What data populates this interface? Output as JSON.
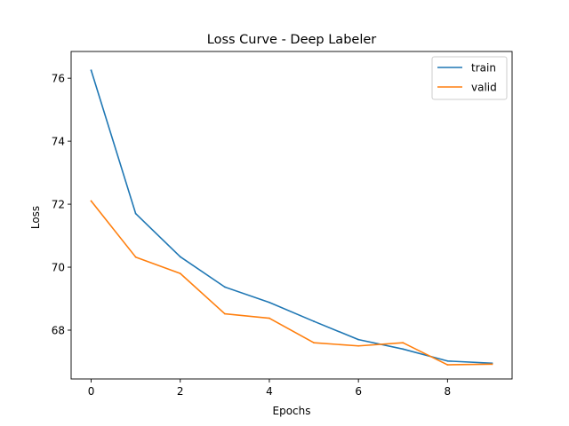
{
  "chart_data": {
    "type": "line",
    "title": "Loss Curve - Deep Labeler",
    "xlabel": "Epochs",
    "ylabel": "Loss",
    "x": [
      0,
      1,
      2,
      3,
      4,
      5,
      6,
      7,
      8,
      9
    ],
    "series": [
      {
        "name": "train",
        "color": "#1f77b4",
        "values": [
          76.25,
          71.7,
          70.33,
          69.37,
          68.88,
          68.28,
          67.7,
          67.4,
          67.02,
          66.95
        ]
      },
      {
        "name": "valid",
        "color": "#ff7f0e",
        "values": [
          72.1,
          70.32,
          69.8,
          68.52,
          68.38,
          67.6,
          67.5,
          67.6,
          66.9,
          66.92
        ]
      }
    ],
    "xlim": [
      -0.45,
      9.45
    ],
    "ylim": [
      66.45,
      76.85
    ],
    "xticks": [
      0,
      2,
      4,
      6,
      8
    ],
    "yticks": [
      68,
      70,
      72,
      74,
      76
    ],
    "grid": false,
    "legend": "top-right"
  }
}
